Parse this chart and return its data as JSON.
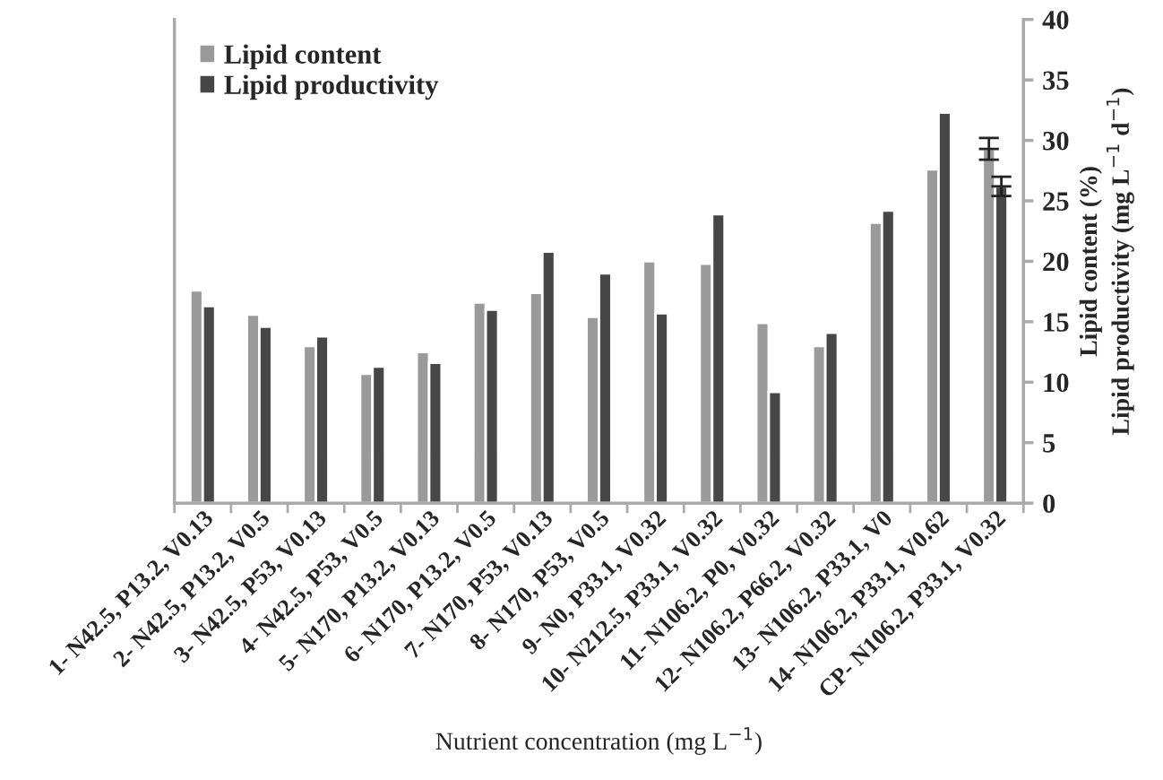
{
  "chart_data": {
    "type": "bar",
    "categories": [
      "1- N42.5, P13.2, V0.13",
      "2- N42.5, P13.2, V0.5",
      "3- N42.5, P53, V0.13",
      "4- N42.5, P53, V0.5",
      "5- N170, P13.2, V0.13",
      "6- N170, P13.2, V0.5",
      "7- N170, P53, V0.13",
      "8- N170, P53, V0.5",
      "9- N0, P33.1, V0.32",
      "10- N212.5, P33.1, V0.32",
      "11- N106.2, P0, V0.32",
      "12- N106.2, P66.2, V0.32",
      "13- N106.2, P33.1, V0",
      "14- N106.2, P33.1, V0.62",
      "CP- N106.2, P33.1, V0.32"
    ],
    "series": [
      {
        "name": "Lipid content",
        "color": "#9a9a9a",
        "values": [
          17.6,
          15.6,
          13.0,
          10.7,
          12.5,
          16.6,
          17.4,
          15.4,
          20.0,
          19.8,
          14.9,
          13.0,
          23.2,
          27.6,
          29.3
        ],
        "errors": [
          null,
          null,
          null,
          null,
          null,
          null,
          null,
          null,
          null,
          null,
          null,
          null,
          null,
          null,
          0.9
        ]
      },
      {
        "name": "Lipid productivity",
        "color": "#474747",
        "values": [
          16.3,
          14.6,
          13.8,
          11.3,
          11.6,
          16.0,
          20.8,
          19.0,
          15.7,
          23.9,
          9.2,
          14.1,
          24.2,
          32.3,
          26.2
        ],
        "errors": [
          null,
          null,
          null,
          null,
          null,
          null,
          null,
          null,
          null,
          null,
          null,
          null,
          null,
          null,
          0.8
        ]
      }
    ],
    "xlabel": "Nutrient concentration (mg L$^{−1}$)",
    "ylabel": "Lipid content (%)\nLipid productivity (mg L$^{−1}$ d$^{−1}$)",
    "ylim": [
      0,
      40
    ],
    "yticks": [
      0,
      5,
      10,
      15,
      20,
      25,
      30,
      35,
      40
    ],
    "grid": false,
    "legend": "top left"
  }
}
